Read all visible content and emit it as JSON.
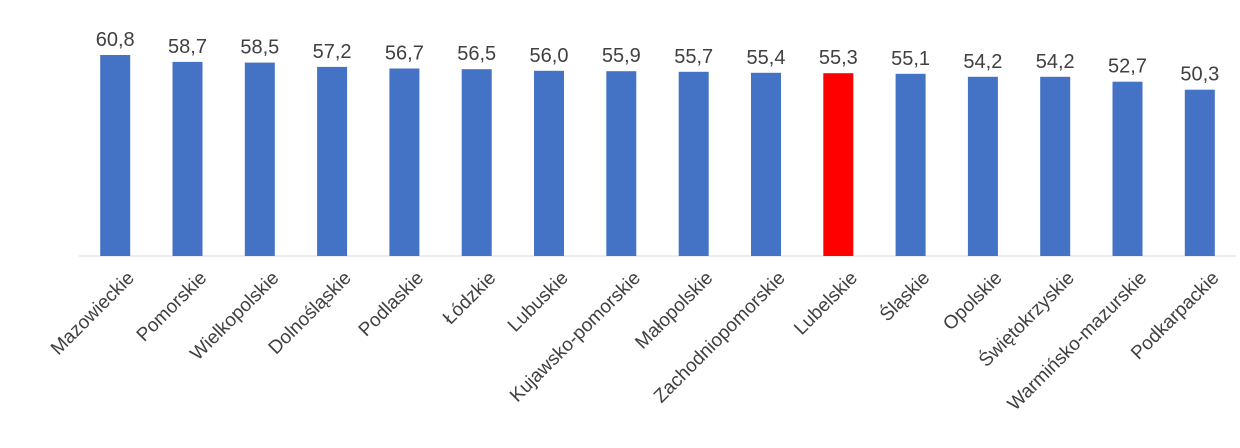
{
  "chart_data": {
    "type": "bar",
    "title": "",
    "xlabel": "",
    "ylabel": "",
    "categories": [
      "Mazowieckie",
      "Pomorskie",
      "Wielkopolskie",
      "Dolnośląskie",
      "Podlaskie",
      "Łódzkie",
      "Lubuskie",
      "Kujawsko-pomorskie",
      "Małopolskie",
      "Zachodniopomorskie",
      "Lubelskie",
      "Śląskie",
      "Opolskie",
      "Świętokrzyskie",
      "Warmińsko-mazurskie",
      "Podkarpackie"
    ],
    "values": [
      60.8,
      58.7,
      58.5,
      57.2,
      56.7,
      56.5,
      56.0,
      55.9,
      55.7,
      55.4,
      55.3,
      55.1,
      54.2,
      54.2,
      52.7,
      50.3
    ],
    "value_labels": [
      "60,8",
      "58,7",
      "58,5",
      "57,2",
      "56,7",
      "56,5",
      "56,0",
      "55,9",
      "55,7",
      "55,4",
      "55,3",
      "55,1",
      "54,2",
      "54,2",
      "52,7",
      "50,3"
    ],
    "ylim": [
      0,
      62
    ],
    "grid": false,
    "legend": "none",
    "highlight_category": "Lubelskie",
    "colors": {
      "bar": "#4472C4",
      "highlight": "#FF0000",
      "baseline": "#D9D9D9",
      "text": "#404040"
    }
  }
}
